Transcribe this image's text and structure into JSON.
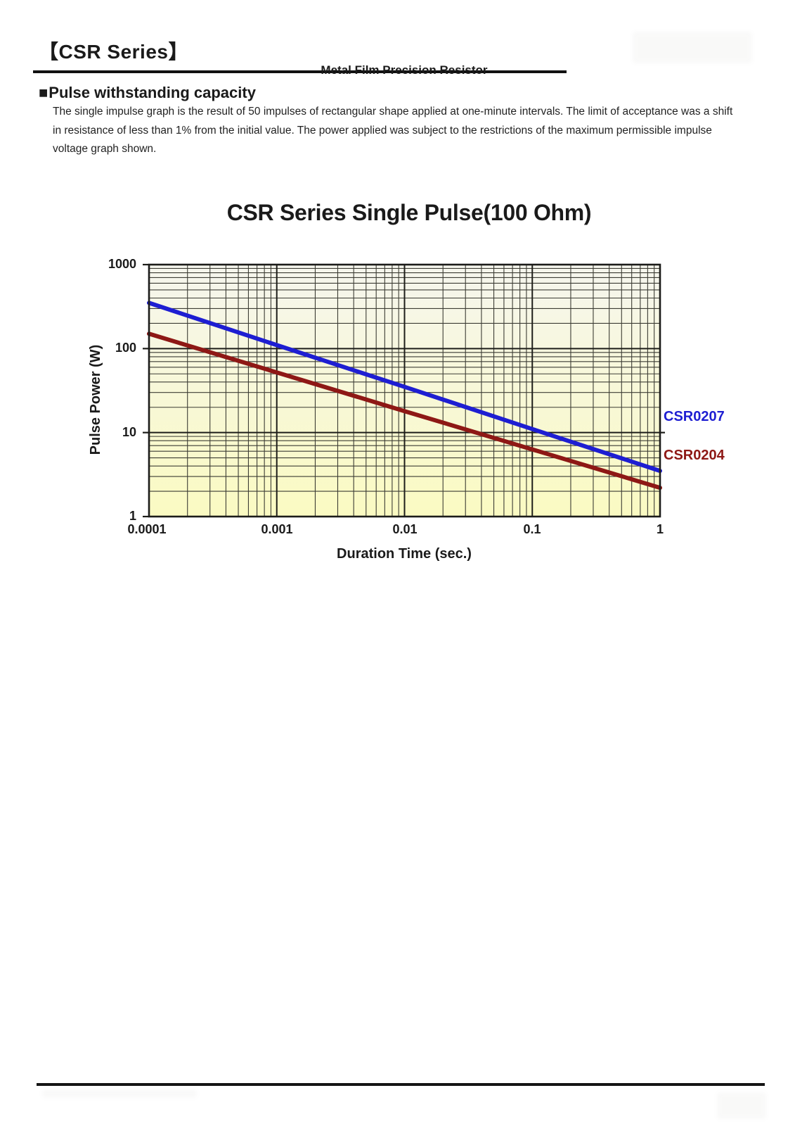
{
  "header": {
    "series_title": "【CSR Series】",
    "subtitle": "Metal Film Precision Resistor"
  },
  "section": {
    "bullet": "■",
    "heading": "Pulse withstanding capacity",
    "body": "The single impulse graph is the result of 50 impulses of rectangular shape applied at one-minute intervals. The limit of acceptance was a shift in resistance of less than 1% from the initial value. The power applied was subject to the restrictions of the maximum permissible impulse voltage graph shown."
  },
  "chart_data": {
    "type": "line",
    "title": "CSR Series Single Pulse(100 Ohm)",
    "xlabel": "Duration Time (sec.)",
    "ylabel": "Pulse Power (W)",
    "x_scale": "log",
    "y_scale": "log",
    "xlim": [
      0.0001,
      1
    ],
    "ylim": [
      1,
      1000
    ],
    "x_ticks": [
      "0.0001",
      "0.001",
      "0.01",
      "0.1",
      "1"
    ],
    "y_ticks": [
      "1000",
      "100",
      "10",
      "1"
    ],
    "grid": "log major and minor gridlines on both axes, dark lines on pale yellow plot",
    "legend_position": "right of plot beside line ends",
    "plot_bg_top": "#f6f6ee",
    "plot_bg_bottom": "#fafac2",
    "series": [
      {
        "name": "CSR0207",
        "color": "#1e1ed2",
        "points": [
          [
            0.0001,
            350
          ],
          [
            0.001,
            110
          ],
          [
            0.01,
            35
          ],
          [
            0.1,
            11
          ],
          [
            1,
            3.5
          ]
        ]
      },
      {
        "name": "CSR0204",
        "color": "#8e1815",
        "points": [
          [
            0.0001,
            150
          ],
          [
            0.001,
            52
          ],
          [
            0.01,
            18
          ],
          [
            0.1,
            6.3
          ],
          [
            1,
            2.2
          ]
        ]
      }
    ]
  }
}
